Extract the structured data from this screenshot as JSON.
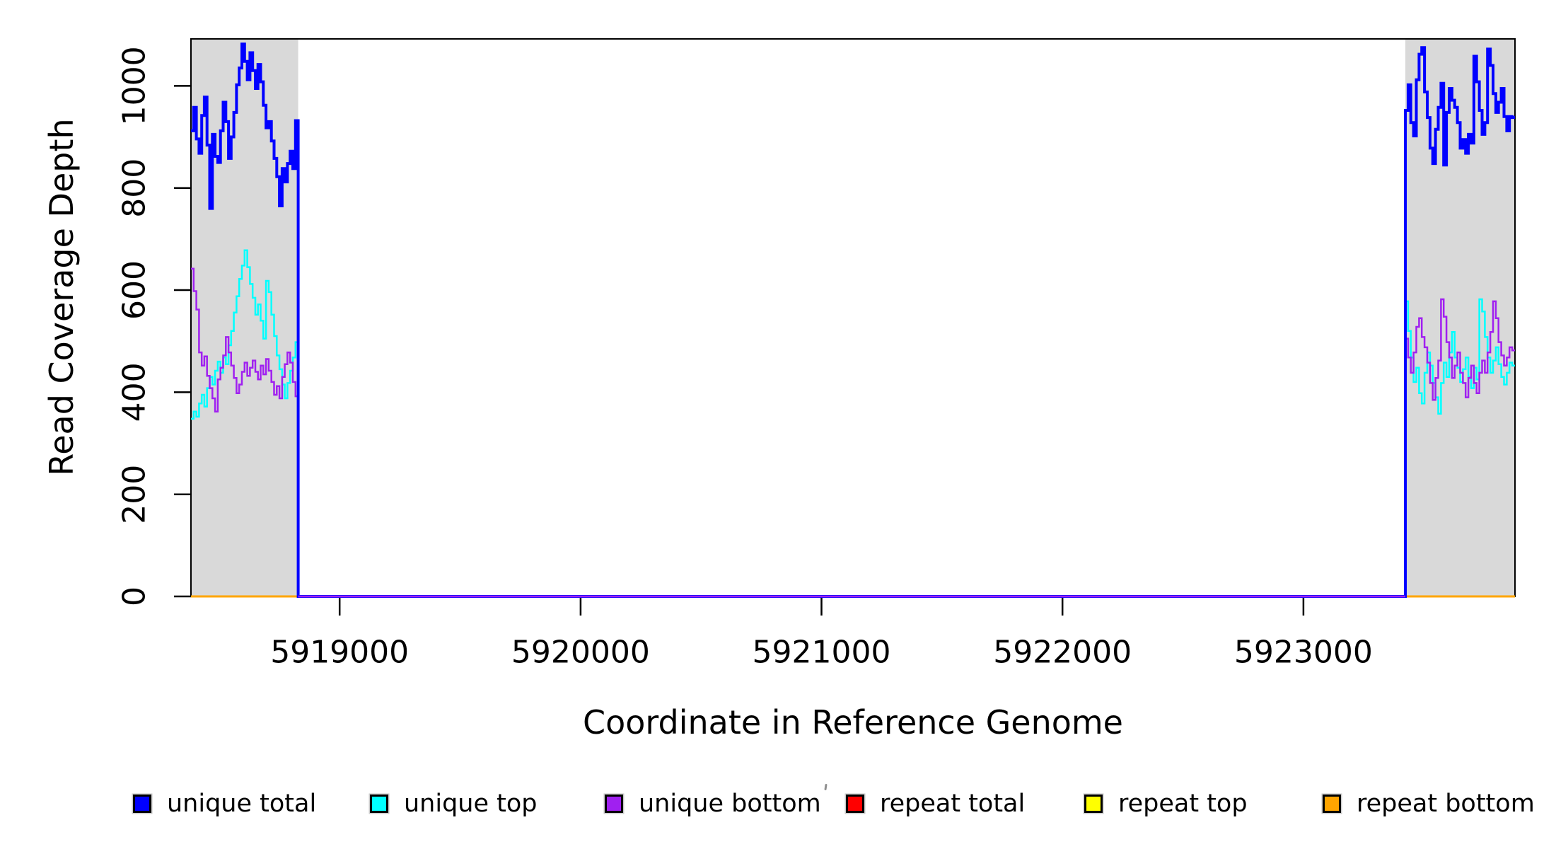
{
  "figure": {
    "xlabel": "Coordinate in Reference Genome",
    "ylabel": "Read Coverage Depth"
  },
  "legend": {
    "items": [
      {
        "label": "unique total",
        "color": "#0000FF"
      },
      {
        "label": "unique top",
        "color": "#00FFFF"
      },
      {
        "label": "unique bottom",
        "color": "#A020F0"
      },
      {
        "label": "repeat total",
        "color": "#FF0000"
      },
      {
        "label": "repeat top",
        "color": "#FFFF00"
      },
      {
        "label": "repeat bottom",
        "color": "#FFA500"
      }
    ]
  },
  "chart_data": {
    "type": "line",
    "subtype": "step",
    "title": "",
    "xlabel": "Coordinate in Reference Genome",
    "ylabel": "Read Coverage Depth",
    "xlim": [
      5918383,
      5923878
    ],
    "ylim": [
      0,
      1092
    ],
    "x_ticks": [
      5919000,
      5920000,
      5921000,
      5922000,
      5923000
    ],
    "y_ticks": [
      0,
      200,
      400,
      600,
      800,
      1000
    ],
    "grid": false,
    "legend_position": "bottom",
    "background": "#FFFFFF",
    "box_color": "#000000",
    "shaded_regions": [
      {
        "start": 5918383,
        "end": 5918828,
        "color": "#D9D9D9"
      },
      {
        "start": 5923423,
        "end": 5923878,
        "color": "#D9D9D9"
      }
    ],
    "note": "Coverage is nonzero only inside the two shaded regions; all series are 0 across the middle gap. Repeat series are 0 everywhere.",
    "series": [
      {
        "name": "repeat total",
        "color": "#FF0000",
        "width": 3,
        "left_values": [
          0,
          0
        ],
        "right_values": [
          0,
          0
        ]
      },
      {
        "name": "repeat top",
        "color": "#FFFF00",
        "width": 3,
        "left_values": [
          0,
          0
        ],
        "right_values": [
          0,
          0
        ]
      },
      {
        "name": "repeat bottom",
        "color": "#FFA500",
        "width": 3,
        "left_values": [
          0,
          0
        ],
        "right_values": [
          0,
          0
        ]
      },
      {
        "name": "unique top",
        "color": "#00FFFF",
        "width": 2.5,
        "left_values": [
          348,
          362,
          352,
          378,
          395,
          372,
          408,
          430,
          415,
          442,
          460,
          438,
          468,
          455,
          492,
          520,
          556,
          588,
          622,
          648,
          678,
          645,
          612,
          585,
          552,
          572,
          540,
          505,
          618,
          596,
          552,
          510,
          472,
          445,
          415,
          388,
          418,
          442,
          468,
          498
        ],
        "right_values": [
          578,
          520,
          468,
          420,
          448,
          398,
          378,
          438,
          478,
          452,
          418,
          390,
          358,
          418,
          458,
          430,
          478,
          518,
          468,
          448,
          420,
          445,
          468,
          430,
          408,
          448,
          425,
          582,
          558,
          508,
          468,
          438,
          462,
          488,
          455,
          430,
          415,
          438,
          458,
          452
        ]
      },
      {
        "name": "unique bottom",
        "color": "#A020F0",
        "width": 2.5,
        "left_values": [
          642,
          598,
          562,
          478,
          452,
          470,
          432,
          408,
          388,
          362,
          425,
          448,
          472,
          508,
          478,
          452,
          428,
          398,
          415,
          440,
          458,
          432,
          448,
          462,
          440,
          425,
          452,
          435,
          465,
          442,
          420,
          395,
          412,
          388,
          430,
          455,
          478,
          458,
          420,
          392
        ],
        "right_values": [
          505,
          468,
          438,
          478,
          528,
          545,
          508,
          488,
          458,
          418,
          385,
          428,
          462,
          582,
          548,
          498,
          468,
          428,
          452,
          478,
          438,
          418,
          390,
          428,
          452,
          418,
          398,
          438,
          462,
          438,
          478,
          518,
          578,
          545,
          498,
          472,
          452,
          468,
          488,
          482
        ]
      },
      {
        "name": "unique total",
        "color": "#0000FF",
        "width": 4,
        "left_values": [
          912,
          958,
          896,
          868,
          942,
          978,
          884,
          760,
          905,
          862,
          850,
          912,
          968,
          930,
          858,
          900,
          948,
          1002,
          1035,
          1082,
          1048,
          1012,
          1065,
          1030,
          995,
          1042,
          1008,
          962,
          918,
          930,
          892,
          858,
          822,
          765,
          838,
          812,
          848,
          872,
          838,
          932
        ],
        "right_values": [
          952,
          1002,
          928,
          902,
          1012,
          1062,
          1075,
          988,
          938,
          878,
          848,
          915,
          958,
          1005,
          845,
          948,
          995,
          972,
          958,
          928,
          878,
          895,
          868,
          905,
          888,
          1058,
          1008,
          952,
          905,
          928,
          1072,
          1040,
          985,
          948,
          968,
          995,
          940,
          912,
          940,
          938
        ]
      }
    ],
    "middle_baseline": {
      "color": "#A020F0",
      "value": 0,
      "width": 2.5
    }
  }
}
